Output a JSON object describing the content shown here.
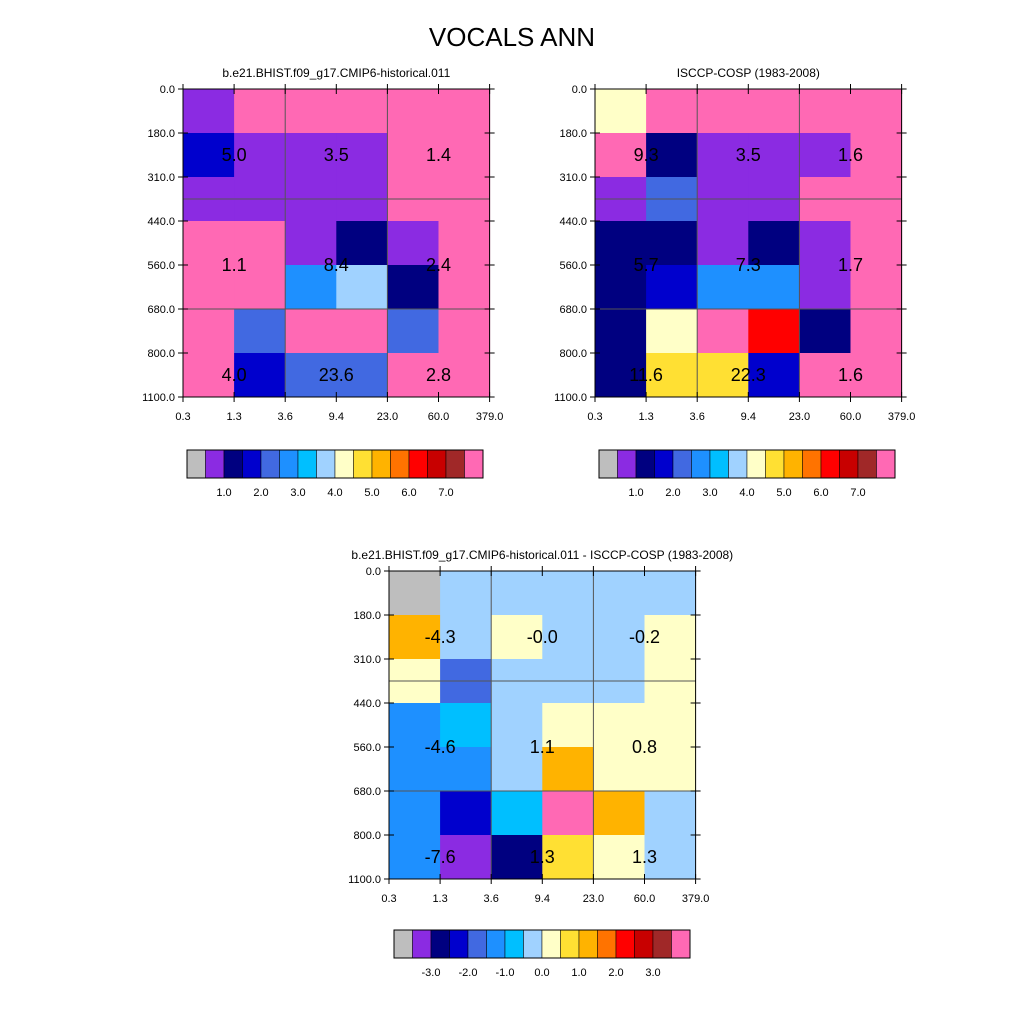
{
  "title": "VOCALS ANN",
  "palette": {
    "missing": "#bebebe",
    "colors": [
      "#8b2be2",
      "#000080",
      "#0000cd",
      "#4169e1",
      "#1e90ff",
      "#00bfff",
      "#a0d2ff",
      "#ffffc8",
      "#ffe033",
      "#ffb300",
      "#ff7300",
      "#ff0000",
      "#c80000",
      "#a02828",
      "#ff69b4"
    ]
  },
  "chart_data": [
    {
      "type": "heatmap",
      "id": "model",
      "title": "b.e21.BHIST.f09_g17.CMIP6-historical.011",
      "x_ticks": [
        "0.3",
        "1.3",
        "3.6",
        "9.4",
        "23.0",
        "60.0",
        "379.0"
      ],
      "y_ticks": [
        "0.0",
        "180.0",
        "310.0",
        "440.0",
        "560.0",
        "680.0",
        "800.0",
        "1100.0"
      ],
      "cells": [
        [
          0,
          14,
          14,
          14,
          14,
          14
        ],
        [
          2,
          0,
          0,
          0,
          14,
          14
        ],
        [
          0,
          0,
          0,
          0,
          14,
          14
        ],
        [
          14,
          14,
          0,
          1,
          0,
          14
        ],
        [
          14,
          14,
          4,
          6,
          1,
          14
        ],
        [
          14,
          3,
          14,
          14,
          3,
          14
        ],
        [
          14,
          2,
          3,
          3,
          14,
          14
        ]
      ],
      "box_labels": [
        {
          "x_group": 0,
          "y_group": 0,
          "text": "5.0"
        },
        {
          "x_group": 1,
          "y_group": 0,
          "text": "3.5"
        },
        {
          "x_group": 2,
          "y_group": 0,
          "text": "1.4"
        },
        {
          "x_group": 0,
          "y_group": 1,
          "text": "1.1"
        },
        {
          "x_group": 1,
          "y_group": 1,
          "text": "8.4"
        },
        {
          "x_group": 2,
          "y_group": 1,
          "text": "2.4"
        },
        {
          "x_group": 0,
          "y_group": 2,
          "text": "4.0"
        },
        {
          "x_group": 1,
          "y_group": 2,
          "text": "23.6"
        },
        {
          "x_group": 2,
          "y_group": 2,
          "text": "2.8"
        }
      ],
      "colorbar_labels": [
        "1.0",
        "2.0",
        "3.0",
        "4.0",
        "5.0",
        "6.0",
        "7.0"
      ]
    },
    {
      "type": "heatmap",
      "id": "obs",
      "title": "ISCCP-COSP (1983-2008)",
      "x_ticks": [
        "0.3",
        "1.3",
        "3.6",
        "9.4",
        "23.0",
        "60.0",
        "379.0"
      ],
      "y_ticks": [
        "0.0",
        "180.0",
        "310.0",
        "440.0",
        "560.0",
        "680.0",
        "800.0",
        "1100.0"
      ],
      "cells": [
        [
          7,
          14,
          14,
          14,
          14,
          14
        ],
        [
          14,
          1,
          0,
          0,
          0,
          14
        ],
        [
          0,
          3,
          0,
          0,
          14,
          14
        ],
        [
          1,
          1,
          0,
          1,
          0,
          14
        ],
        [
          1,
          2,
          4,
          4,
          0,
          14
        ],
        [
          1,
          7,
          14,
          11,
          1,
          14
        ],
        [
          1,
          8,
          8,
          2,
          14,
          14
        ]
      ],
      "box_labels": [
        {
          "x_group": 0,
          "y_group": 0,
          "text": "9.3"
        },
        {
          "x_group": 1,
          "y_group": 0,
          "text": "3.5"
        },
        {
          "x_group": 2,
          "y_group": 0,
          "text": "1.6"
        },
        {
          "x_group": 0,
          "y_group": 1,
          "text": "5.7"
        },
        {
          "x_group": 1,
          "y_group": 1,
          "text": "7.3"
        },
        {
          "x_group": 2,
          "y_group": 1,
          "text": "1.7"
        },
        {
          "x_group": 0,
          "y_group": 2,
          "text": "11.6"
        },
        {
          "x_group": 1,
          "y_group": 2,
          "text": "22.3"
        },
        {
          "x_group": 2,
          "y_group": 2,
          "text": "1.6"
        }
      ],
      "colorbar_labels": [
        "1.0",
        "2.0",
        "3.0",
        "4.0",
        "5.0",
        "6.0",
        "7.0"
      ]
    },
    {
      "type": "heatmap",
      "id": "diff",
      "title": "b.e21.BHIST.f09_g17.CMIP6-historical.011 - ISCCP-COSP (1983-2008)",
      "x_ticks": [
        "0.3",
        "1.3",
        "3.6",
        "9.4",
        "23.0",
        "60.0",
        "379.0"
      ],
      "y_ticks": [
        "0.0",
        "180.0",
        "310.0",
        "440.0",
        "560.0",
        "680.0",
        "800.0",
        "1100.0"
      ],
      "cells": [
        [
          -1,
          6,
          6,
          6,
          6,
          6
        ],
        [
          9,
          6,
          7,
          6,
          6,
          7
        ],
        [
          7,
          3,
          6,
          6,
          6,
          7
        ],
        [
          4,
          5,
          6,
          7,
          7,
          7
        ],
        [
          4,
          4,
          6,
          9,
          7,
          7
        ],
        [
          4,
          2,
          5,
          14,
          9,
          6
        ],
        [
          4,
          0,
          1,
          8,
          7,
          6
        ]
      ],
      "box_labels": [
        {
          "x_group": 0,
          "y_group": 0,
          "text": "-4.3"
        },
        {
          "x_group": 1,
          "y_group": 0,
          "text": "-0.0"
        },
        {
          "x_group": 2,
          "y_group": 0,
          "text": "-0.2"
        },
        {
          "x_group": 0,
          "y_group": 1,
          "text": "-4.6"
        },
        {
          "x_group": 1,
          "y_group": 1,
          "text": "1.1"
        },
        {
          "x_group": 2,
          "y_group": 1,
          "text": "0.8"
        },
        {
          "x_group": 0,
          "y_group": 2,
          "text": "-7.6"
        },
        {
          "x_group": 1,
          "y_group": 2,
          "text": "1.3"
        },
        {
          "x_group": 2,
          "y_group": 2,
          "text": "1.3"
        }
      ],
      "colorbar_labels": [
        "-3.0",
        "-2.0",
        "-1.0",
        "0.0",
        "1.0",
        "2.0",
        "3.0"
      ]
    }
  ]
}
